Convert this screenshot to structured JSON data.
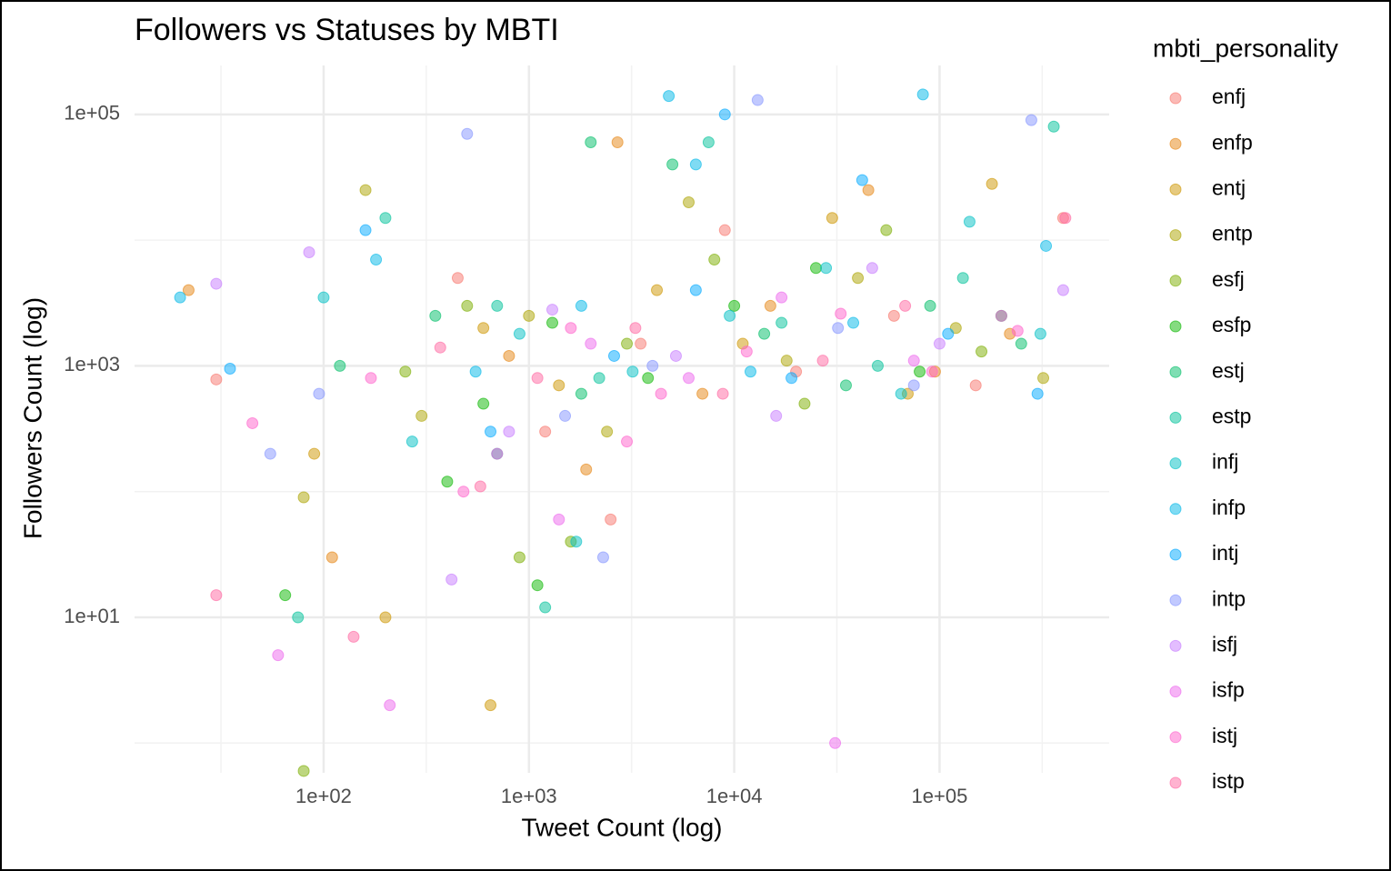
{
  "chart_data": {
    "type": "scatter",
    "title": "Followers vs Statuses by MBTI",
    "x_label": "Tweet Count (log)",
    "y_label": "Followers Count (log)",
    "legend_title": "mbti_personality",
    "legend_position": "right",
    "xscale": "log",
    "yscale": "log",
    "grid": true,
    "xlim": [
      12,
      670000
    ],
    "ylim": [
      0.58,
      245000
    ],
    "xticks": [
      {
        "value": 100,
        "label": "1e+02"
      },
      {
        "value": 1000,
        "label": "1e+03"
      },
      {
        "value": 10000,
        "label": "1e+04"
      },
      {
        "value": 100000,
        "label": "1e+05"
      }
    ],
    "yticks": [
      {
        "value": 10,
        "label": "1e+01"
      },
      {
        "value": 1000,
        "label": "1e+03"
      },
      {
        "value": 100000,
        "label": "1e+05"
      }
    ],
    "xminorticks": [
      31.62,
      316.2,
      3162,
      31623,
      316228
    ],
    "yminorticks": [
      1,
      100,
      10000
    ],
    "series": [
      {
        "name": "enfj",
        "color": "#F8766D",
        "x": [
          30,
          450,
          1200,
          3500,
          9000,
          20000,
          60000,
          150000,
          400000,
          2500
        ],
        "values": [
          780,
          5000,
          300,
          1500,
          12000,
          900,
          2500,
          700,
          15000,
          60
        ]
      },
      {
        "name": "enfp",
        "color": "#E68613",
        "x": [
          22,
          110,
          800,
          2700,
          7000,
          15000,
          45000,
          95000,
          220000,
          1900
        ],
        "values": [
          4000,
          30,
          1200,
          60000,
          600,
          3000,
          25000,
          900,
          1800,
          150
        ]
      },
      {
        "name": "entj",
        "color": "#CD9600",
        "x": [
          200,
          600,
          1400,
          4200,
          11000,
          30000,
          70000,
          180000,
          650,
          90
        ],
        "values": [
          10,
          2000,
          700,
          4000,
          1500,
          15000,
          600,
          28000,
          2,
          200
        ]
      },
      {
        "name": "entp",
        "color": "#ABA300",
        "x": [
          160,
          300,
          1000,
          2400,
          6000,
          18000,
          40000,
          120000,
          320000,
          80
        ],
        "values": [
          25000,
          400,
          2500,
          300,
          20000,
          1100,
          5000,
          2000,
          800,
          90
        ]
      },
      {
        "name": "esfj",
        "color": "#7CAE00",
        "x": [
          80,
          250,
          900,
          3000,
          8000,
          22000,
          55000,
          160000,
          1600,
          500
        ],
        "values": [
          0.6,
          900,
          30,
          1500,
          7000,
          500,
          12000,
          1300,
          40,
          3000
        ]
      },
      {
        "name": "esfp",
        "color": "#0CB702",
        "x": [
          65,
          400,
          1300,
          3800,
          10000,
          25000,
          80000,
          200000,
          1100,
          600
        ],
        "values": [
          15,
          120,
          2200,
          800,
          3000,
          6000,
          900,
          2500,
          18,
          500
        ]
      },
      {
        "name": "estj",
        "color": "#00BE67",
        "x": [
          120,
          350,
          1800,
          5000,
          14000,
          35000,
          90000,
          250000,
          700,
          2000
        ],
        "values": [
          1000,
          2500,
          600,
          40000,
          1800,
          700,
          3000,
          1500,
          200,
          60000
        ]
      },
      {
        "name": "estp",
        "color": "#00C19A",
        "x": [
          75,
          200,
          700,
          2200,
          7500,
          17000,
          50000,
          130000,
          360000,
          1200
        ],
        "values": [
          10,
          15000,
          3000,
          800,
          60000,
          2200,
          1000,
          5000,
          80000,
          12
        ]
      },
      {
        "name": "infj",
        "color": "#00BFC4",
        "x": [
          100,
          270,
          900,
          3200,
          9500,
          28000,
          65000,
          140000,
          310000,
          1700
        ],
        "values": [
          3500,
          250,
          1800,
          900,
          2500,
          6000,
          600,
          14000,
          1800,
          40
        ]
      },
      {
        "name": "infp",
        "color": "#00B8E7",
        "x": [
          20,
          180,
          550,
          1800,
          4800,
          12000,
          38000,
          83000,
          330000,
          6500
        ],
        "values": [
          3500,
          7000,
          900,
          3000,
          140000,
          900,
          2200,
          144000,
          9000,
          40000
        ]
      },
      {
        "name": "intj",
        "color": "#00A9FF",
        "x": [
          35,
          160,
          650,
          2600,
          6500,
          19000,
          42000,
          110000,
          300000,
          9000
        ],
        "values": [
          950,
          12000,
          300,
          1200,
          4000,
          800,
          30000,
          1800,
          600,
          100000
        ]
      },
      {
        "name": "intp",
        "color": "#8494FF",
        "x": [
          55,
          95,
          500,
          1500,
          4000,
          13000,
          32000,
          75000,
          280000,
          2300
        ],
        "values": [
          200,
          600,
          70000,
          400,
          1000,
          130000,
          2000,
          700,
          90000,
          30
        ]
      },
      {
        "name": "isfj",
        "color": "#C77CFF",
        "x": [
          30,
          85,
          420,
          1300,
          5200,
          16000,
          47000,
          100000,
          400000,
          800
        ],
        "values": [
          4500,
          8000,
          20,
          2800,
          1200,
          400,
          6000,
          1500,
          4000,
          300
        ]
      },
      {
        "name": "isfp",
        "color": "#ED68ED",
        "x": [
          60,
          210,
          700,
          2000,
          6000,
          17000,
          31000,
          75000,
          200000,
          1400
        ],
        "values": [
          5,
          2,
          200,
          1500,
          800,
          3500,
          1,
          1100,
          2500,
          60
        ]
      },
      {
        "name": "istj",
        "color": "#FF61CC",
        "x": [
          45,
          170,
          480,
          1600,
          4400,
          11500,
          33000,
          92000,
          240000,
          3000
        ],
        "values": [
          350,
          800,
          100,
          2000,
          600,
          1300,
          2600,
          900,
          1900,
          250
        ]
      },
      {
        "name": "istp",
        "color": "#FF68A1",
        "x": [
          30,
          140,
          370,
          1100,
          3300,
          8800,
          27000,
          68000,
          410000,
          580
        ],
        "values": [
          15,
          7,
          1400,
          800,
          2000,
          600,
          1100,
          3000,
          15000,
          110
        ]
      }
    ]
  }
}
